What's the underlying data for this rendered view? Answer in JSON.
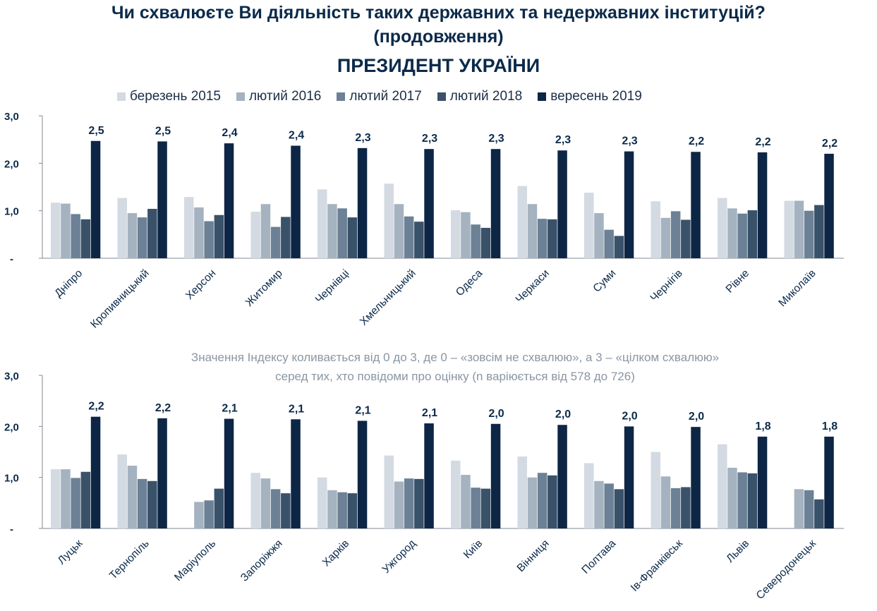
{
  "header": {
    "title_line1": "Чи схвалюєте Ви діяльність таких державних та недержавних інституцій?",
    "title_line2": "(продовження)",
    "title_line3": "ПРЕЗИДЕНТ УКРАЇНИ"
  },
  "colors": [
    "#d3dae2",
    "#a5b2bf",
    "#6c8196",
    "#3a5269",
    "#0d2646"
  ],
  "legend": [
    "березень 2015",
    "лютий 2016",
    "лютий 2017",
    "лютий 2018",
    "вересень 2019"
  ],
  "note": {
    "line1": "Значення Індексу коливається від 0 до 3, де 0 – «зовсім не схвалюю», а 3 – «цілком схвалюю»",
    "line2": "серед тих, хто повідоми про оцінку (n варіюється від 578 до 726)"
  },
  "chart_data": [
    {
      "type": "bar",
      "ylim": [
        0,
        3
      ],
      "yticks": [
        "-",
        "1,0",
        "2,0",
        "3,0"
      ],
      "categories": [
        "Дніпро",
        "Кропивницький",
        "Херсон",
        "Житомир",
        "Чернівці",
        "Хмельницький",
        "Одеса",
        "Черкаси",
        "Суми",
        "Чернігів",
        "Рівне",
        "Миколаїв"
      ],
      "series": [
        {
          "name": "березень 2015",
          "values": [
            1.17,
            1.27,
            1.29,
            0.98,
            1.45,
            1.57,
            1.01,
            1.52,
            1.38,
            1.2,
            1.27,
            1.21
          ]
        },
        {
          "name": "лютий 2016",
          "values": [
            1.15,
            0.95,
            1.07,
            1.14,
            1.14,
            1.14,
            0.97,
            1.14,
            0.95,
            0.85,
            1.05,
            1.21
          ]
        },
        {
          "name": "лютий 2017",
          "values": [
            0.93,
            0.86,
            0.78,
            0.66,
            1.05,
            0.88,
            0.71,
            0.83,
            0.6,
            0.99,
            0.94,
            1.0
          ]
        },
        {
          "name": "лютий 2018",
          "values": [
            0.82,
            1.04,
            0.91,
            0.87,
            0.86,
            0.77,
            0.64,
            0.82,
            0.47,
            0.81,
            1.01,
            1.12
          ]
        },
        {
          "name": "вересень 2019",
          "values": [
            2.47,
            2.46,
            2.42,
            2.37,
            2.32,
            2.3,
            2.3,
            2.27,
            2.25,
            2.24,
            2.23,
            2.2
          ]
        }
      ],
      "data_labels": [
        "2,5",
        "2,5",
        "2,4",
        "2,4",
        "2,3",
        "2,3",
        "2,3",
        "2,3",
        "2,3",
        "2,2",
        "2,2",
        "2,2"
      ]
    },
    {
      "type": "bar",
      "ylim": [
        0,
        3
      ],
      "yticks": [
        "-",
        "1,0",
        "2,0",
        "3,0"
      ],
      "categories": [
        "Луцьк",
        "Тернопіль",
        "Маріуполь",
        "Запоріжжя",
        "Харків",
        "Ужгород",
        "Київ",
        "Вінниця",
        "Полтава",
        "Ів-Франківськ",
        "Львів",
        "Северодонецьк"
      ],
      "series": [
        {
          "name": "березень 2015",
          "values": [
            1.16,
            1.45,
            null,
            1.09,
            1.0,
            1.43,
            1.33,
            1.41,
            1.28,
            1.5,
            1.65,
            null
          ]
        },
        {
          "name": "лютий 2016",
          "values": [
            1.16,
            1.23,
            0.52,
            0.98,
            0.75,
            0.92,
            1.05,
            1.0,
            0.93,
            1.02,
            1.19,
            0.77
          ]
        },
        {
          "name": "лютий 2017",
          "values": [
            0.99,
            0.97,
            0.55,
            0.77,
            0.71,
            0.98,
            0.8,
            1.09,
            0.88,
            0.79,
            1.1,
            0.75
          ]
        },
        {
          "name": "лютий 2018",
          "values": [
            1.11,
            0.93,
            0.78,
            0.69,
            0.69,
            0.97,
            0.78,
            1.04,
            0.77,
            0.81,
            1.08,
            0.57
          ]
        },
        {
          "name": "вересень 2019",
          "values": [
            2.19,
            2.16,
            2.15,
            2.14,
            2.11,
            2.06,
            2.05,
            2.03,
            2.0,
            1.99,
            1.8,
            1.8
          ]
        }
      ],
      "data_labels": [
        "2,2",
        "2,2",
        "2,1",
        "2,1",
        "2,1",
        "2,1",
        "2,0",
        "2,0",
        "2,0",
        "2,0",
        "1,8",
        "1,8"
      ]
    }
  ]
}
